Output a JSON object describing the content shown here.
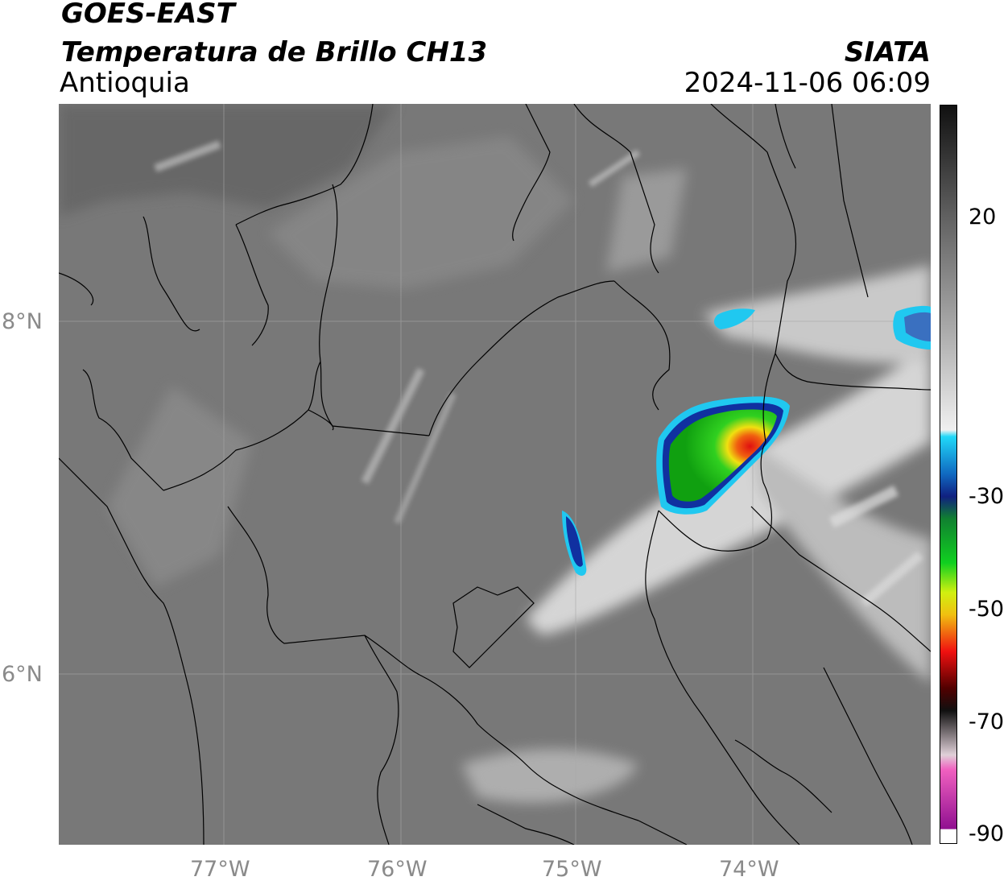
{
  "header": {
    "satellite": "GOES-EAST",
    "product": "Temperatura de Brillo CH13",
    "region": "Antioquia",
    "organization": "SIATA",
    "timestamp": "2024-11-06 06:09"
  },
  "map": {
    "lat_labels": [
      "8°N",
      "6°N"
    ],
    "lon_labels": [
      "77°W",
      "76°W",
      "75°W",
      "74°W"
    ],
    "colors": {
      "background_gray": "#7a7a7a",
      "cloud_white": "#f2f2f2",
      "cyan": "#20c8f0",
      "blue": "#1030a0",
      "green": "#10c020",
      "yellow": "#f0e010",
      "red": "#e01010"
    }
  },
  "colorbar": {
    "tick_labels": [
      "20",
      "-30",
      "-50",
      "-70",
      "-90"
    ],
    "range": [
      -90,
      40
    ],
    "ticks": [
      20,
      -30,
      -50,
      -70,
      -90
    ]
  }
}
